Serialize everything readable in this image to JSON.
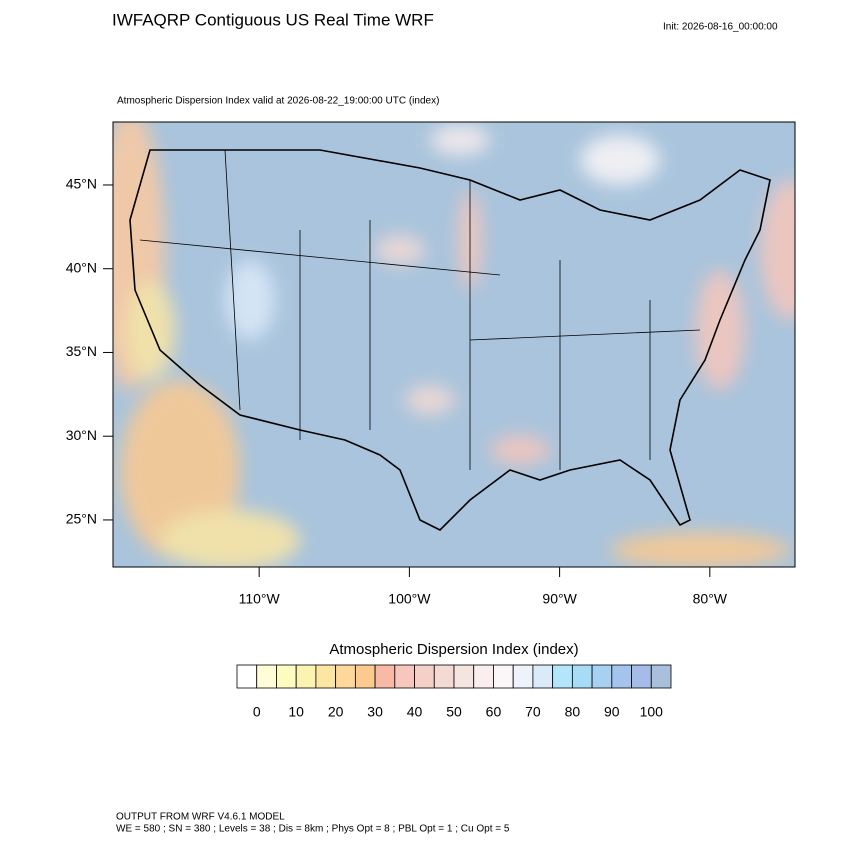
{
  "header": {
    "title": "IWFAQRP Contiguous US Real Time WRF",
    "init": "Init: 2026-08-16_00:00:00"
  },
  "map": {
    "subtitle": "Atmospheric Dispersion Index valid at 2026-08-22_19:00:00 UTC   (index)",
    "lonlim": [
      -119.73,
      -74.33
    ],
    "latlim": [
      22.19,
      48.76
    ],
    "lon_ticks": [
      {
        "value": -110,
        "label": "110°W"
      },
      {
        "value": -100,
        "label": "100°W"
      },
      {
        "value": -90,
        "label": "90°W"
      },
      {
        "value": -80,
        "label": "80°W"
      }
    ],
    "lat_ticks": [
      {
        "value": 25,
        "label": "25°N"
      },
      {
        "value": 30,
        "label": "30°N"
      },
      {
        "value": 35,
        "label": "35°N"
      },
      {
        "value": 40,
        "label": "40°N"
      },
      {
        "value": 45,
        "label": "45°N"
      }
    ]
  },
  "colorbar": {
    "title": "Atmospheric Dispersion Index  (index)",
    "levels": [
      0,
      5,
      10,
      15,
      20,
      25,
      30,
      35,
      40,
      45,
      50,
      55,
      60,
      65,
      70,
      75,
      80,
      85,
      90,
      95,
      100
    ],
    "colors": [
      "#ffffff",
      "#fffdd8",
      "#fdfcc0",
      "#fcf3b0",
      "#fde6a2",
      "#fdd89a",
      "#fcc98f",
      "#f8b9a5",
      "#f7c6bc",
      "#f5d0c8",
      "#f5dad4",
      "#f6e4e0",
      "#fbeeee",
      "#fbf6f8",
      "#eef2fb",
      "#dbeaf9",
      "#b3e5fb",
      "#a6dcf6",
      "#a8d0f0",
      "#a4c4ee",
      "#a6bce8",
      "#a9c0dc"
    ],
    "ticks": [
      0,
      10,
      20,
      30,
      40,
      50,
      60,
      70,
      80,
      90,
      100
    ]
  },
  "footer": [
    "OUTPUT FROM WRF V4.6.1 MODEL",
    "WE = 580 ; SN = 380 ; Levels = 38 ; Dis = 8km ; Phys Opt = 8 ; PBL Opt = 1 ; Cu Opt = 5"
  ]
}
